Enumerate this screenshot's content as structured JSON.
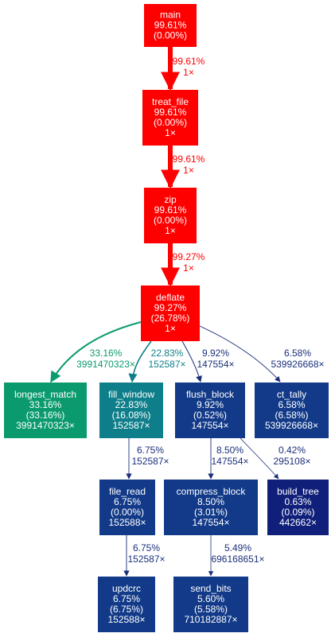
{
  "colors": {
    "red": "#ff0000",
    "teal_green": "#0b9a6e",
    "teal": "#0e7f8a",
    "blue": "#123a88",
    "navy": "#0f1f7a",
    "node_text": "#ffffff",
    "edge_navy": "#1a2f7a"
  },
  "nodes": {
    "main": {
      "lines": [
        "main",
        "99.61%",
        "(0.00%)"
      ],
      "color": "red"
    },
    "treat_file": {
      "lines": [
        "treat_file",
        "99.61%",
        "(0.00%)",
        "1×"
      ],
      "color": "red"
    },
    "zip": {
      "lines": [
        "zip",
        "99.61%",
        "(0.00%)",
        "1×"
      ],
      "color": "red"
    },
    "deflate": {
      "lines": [
        "deflate",
        "99.27%",
        "(26.78%)",
        "1×"
      ],
      "color": "red"
    },
    "longest_match": {
      "lines": [
        "longest_match",
        "33.16%",
        "(33.16%)",
        "3991470323×"
      ],
      "color": "teal_green"
    },
    "fill_window": {
      "lines": [
        "fill_window",
        "22.83%",
        "(16.08%)",
        "152587×"
      ],
      "color": "teal"
    },
    "flush_block": {
      "lines": [
        "flush_block",
        "9.92%",
        "(0.52%)",
        "147554×"
      ],
      "color": "blue"
    },
    "ct_tally": {
      "lines": [
        "ct_tally",
        "6.58%",
        "(6.58%)",
        "539926668×"
      ],
      "color": "blue"
    },
    "file_read": {
      "lines": [
        "file_read",
        "6.75%",
        "(0.00%)",
        "152588×"
      ],
      "color": "blue"
    },
    "compress_block": {
      "lines": [
        "compress_block",
        "8.50%",
        "(3.01%)",
        "147554×"
      ],
      "color": "blue"
    },
    "build_tree": {
      "lines": [
        "build_tree",
        "0.63%",
        "(0.09%)",
        "442662×"
      ],
      "color": "navy"
    },
    "updcrc": {
      "lines": [
        "updcrc",
        "6.75%",
        "(6.75%)",
        "152588×"
      ],
      "color": "blue"
    },
    "send_bits": {
      "lines": [
        "send_bits",
        "5.60%",
        "(5.58%)",
        "710182887×"
      ],
      "color": "blue"
    }
  },
  "edges": [
    {
      "from": "main",
      "to": "treat_file",
      "label": [
        "99.61%",
        "1×"
      ],
      "color": "red"
    },
    {
      "from": "treat_file",
      "to": "zip",
      "label": [
        "99.61%",
        "1×"
      ],
      "color": "red"
    },
    {
      "from": "zip",
      "to": "deflate",
      "label": [
        "99.27%",
        "1×"
      ],
      "color": "red"
    },
    {
      "from": "deflate",
      "to": "longest_match",
      "label": [
        "33.16%",
        "3991470323×"
      ],
      "color": "teal_green"
    },
    {
      "from": "deflate",
      "to": "fill_window",
      "label": [
        "22.83%",
        "152587×"
      ],
      "color": "teal"
    },
    {
      "from": "deflate",
      "to": "flush_block",
      "label": [
        "9.92%",
        "147554×"
      ],
      "color": "edge_navy"
    },
    {
      "from": "deflate",
      "to": "ct_tally",
      "label": [
        "6.58%",
        "539926668×"
      ],
      "color": "edge_navy"
    },
    {
      "from": "fill_window",
      "to": "file_read",
      "label": [
        "6.75%",
        "152587×"
      ],
      "color": "edge_navy"
    },
    {
      "from": "flush_block",
      "to": "compress_block",
      "label": [
        "8.50%",
        "147554×"
      ],
      "color": "edge_navy"
    },
    {
      "from": "flush_block",
      "to": "build_tree",
      "label": [
        "0.42%",
        "295108×"
      ],
      "color": "edge_navy"
    },
    {
      "from": "file_read",
      "to": "updcrc",
      "label": [
        "6.75%",
        "152587×"
      ],
      "color": "edge_navy"
    },
    {
      "from": "compress_block",
      "to": "send_bits",
      "label": [
        "5.49%",
        "696168651×"
      ],
      "color": "edge_navy"
    }
  ]
}
